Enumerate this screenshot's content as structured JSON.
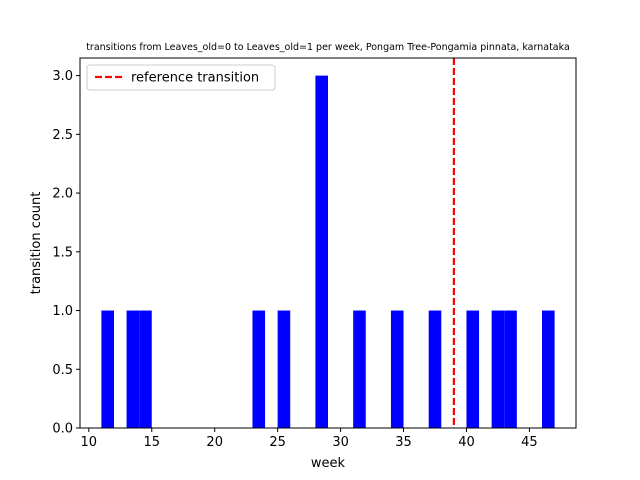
{
  "chart_data": {
    "type": "bar",
    "title": "transitions from Leaves_old=0 to Leaves_old=1 per week, Pongam Tree-Pongamia pinnata, karnataka",
    "xlabel": "week",
    "ylabel": "transition count",
    "xlim": [
      9.3,
      48.7
    ],
    "ylim": [
      0,
      3.15
    ],
    "xticks": [
      10,
      15,
      20,
      25,
      30,
      35,
      40,
      45
    ],
    "yticks": [
      0.0,
      0.5,
      1.0,
      1.5,
      2.0,
      2.5,
      3.0
    ],
    "ytick_labels": [
      "0.0",
      "0.5",
      "1.0",
      "1.5",
      "2.0",
      "2.5",
      "3.0"
    ],
    "bar_width": 1,
    "bar_color": "#0000ff",
    "bars": [
      {
        "week": 11,
        "count": 1
      },
      {
        "week": 13,
        "count": 1
      },
      {
        "week": 14,
        "count": 1
      },
      {
        "week": 23,
        "count": 1
      },
      {
        "week": 25,
        "count": 1
      },
      {
        "week": 28,
        "count": 3
      },
      {
        "week": 31,
        "count": 1
      },
      {
        "week": 34,
        "count": 1
      },
      {
        "week": 37,
        "count": 1
      },
      {
        "week": 40,
        "count": 1
      },
      {
        "week": 42,
        "count": 1
      },
      {
        "week": 43,
        "count": 1
      },
      {
        "week": 46,
        "count": 1
      }
    ],
    "reference_line": {
      "week": 39,
      "label": "reference transition",
      "color": "#ff0000",
      "style": "dashed"
    },
    "legend": {
      "placement": "upper-left"
    },
    "grid": false
  }
}
